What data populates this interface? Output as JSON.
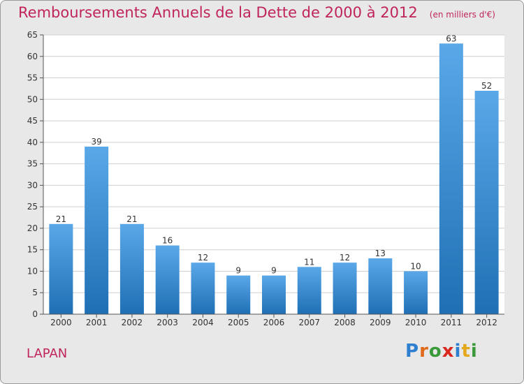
{
  "title": "Remboursements Annuels de la Dette de 2000 à 2012",
  "unit_note": "(en milliers d'€)",
  "commune": "LAPAN",
  "brand": {
    "letters": [
      {
        "char": "P",
        "color": "#2f7fd0"
      },
      {
        "char": "r",
        "color": "#e06a1b"
      },
      {
        "char": "o",
        "color": "#3a9a3a"
      },
      {
        "char": "x",
        "color": "#d9281e"
      },
      {
        "char": "i",
        "color": "#2f7fd0"
      },
      {
        "char": "t",
        "color": "#e3a91b"
      },
      {
        "char": "i",
        "color": "#3a9a3a"
      }
    ]
  },
  "colors": {
    "title": "#c0245c",
    "bar_light": "#5aa8e8",
    "bar_dark": "#1f6fb5",
    "plot_bg": "#ffffff",
    "grid": "#cfcfcf"
  },
  "chart_data": {
    "type": "bar",
    "categories": [
      "2000",
      "2001",
      "2002",
      "2003",
      "2004",
      "2005",
      "2006",
      "2007",
      "2008",
      "2009",
      "2010",
      "2011",
      "2012"
    ],
    "values": [
      21,
      39,
      21,
      16,
      12,
      9,
      9,
      11,
      12,
      13,
      10,
      63,
      52
    ],
    "ylim": [
      0,
      65
    ],
    "yticks": [
      0,
      5,
      10,
      15,
      20,
      25,
      30,
      35,
      40,
      45,
      50,
      55,
      60,
      65
    ],
    "grid": true,
    "data_labels": true
  }
}
